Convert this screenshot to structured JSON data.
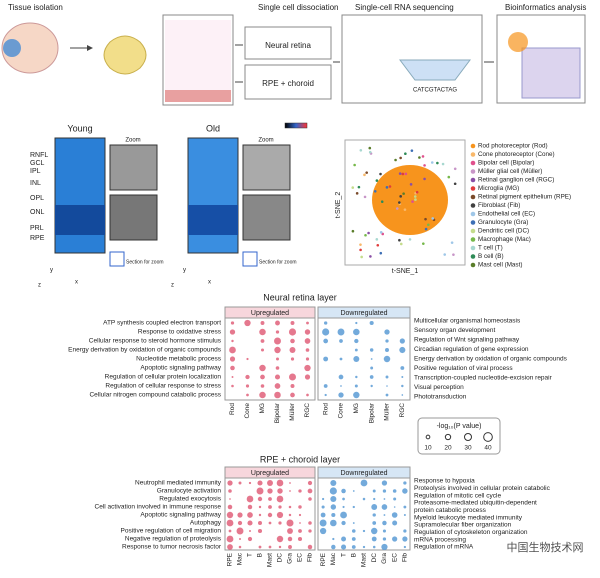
{
  "workflow": {
    "steps": [
      "Tissue isolation",
      "Single cell dissociation",
      "Single-cell RNA sequencing",
      "Bioinformatics analysis"
    ],
    "samples": [
      "Neural retina",
      "RPE + choroid"
    ],
    "sequence": "CATCGTACTAG"
  },
  "oct": {
    "groups": [
      "Young",
      "Old"
    ],
    "zoom": "Zoom",
    "layers": [
      "RNFL",
      "GCL",
      "IPL",
      "INL",
      "OPL",
      "ONL",
      "PRL",
      "RPE"
    ],
    "section": "Section for zoom",
    "axes": [
      "y",
      "x",
      "z"
    ]
  },
  "tsne": {
    "x_label": "t-SNE_1",
    "y_label": "t-SNE_2",
    "cell_types": [
      {
        "name": "Rod photoreceptor (Rod)",
        "color": "#f7941d"
      },
      {
        "name": "Cone photoreceptor (Cone)",
        "color": "#f9b86a"
      },
      {
        "name": "Bipolar cell (Bipolar)",
        "color": "#e0508c"
      },
      {
        "name": "Müller glial cell (Müller)",
        "color": "#c896c8"
      },
      {
        "name": "Retinal ganglion cell (RGC)",
        "color": "#8a4fa6"
      },
      {
        "name": "Microglia (MG)",
        "color": "#e03c3c"
      },
      {
        "name": "Retinal pigment epithelium (RPE)",
        "color": "#7a4a2a"
      },
      {
        "name": "Fibroblast (Fib)",
        "color": "#404040"
      },
      {
        "name": "Endothelial cell (EC)",
        "color": "#9fc7e8"
      },
      {
        "name": "Granulocyte (Gra)",
        "color": "#3d6fb5"
      },
      {
        "name": "Dendritic cell (DC)",
        "color": "#c4dc8c"
      },
      {
        "name": "Macrophage (Mac)",
        "color": "#76b84a"
      },
      {
        "name": "T cell (T)",
        "color": "#a8d8d0"
      },
      {
        "name": "B cell (B)",
        "color": "#2e8b57"
      },
      {
        "name": "Mast cell (Mast)",
        "color": "#5a7d2a"
      }
    ]
  },
  "dotplots": [
    {
      "title": "Neural retina layer",
      "up": "Upregulated",
      "down": "Downregulated",
      "up_terms": [
        "ATP synthesis coupled electron transport",
        "Response to oxidative stress",
        "Cellular response to steroid hormone stimulus",
        "Energy derivation by oxidation of organic compounds",
        "Nucleotide metabolic process",
        "Apoptotic signaling pathway",
        "Regulation of cellular protein localization",
        "Regulation of cellular response to stress",
        "Cellular nitrogen compound catabolic process"
      ],
      "down_terms": [
        "Multicellular organismal homeostasis",
        "Sensory organ development",
        "Regulation of Wnt signaling pathway",
        "Circadian regulation of gene expression",
        "Energy derivation by oxidation of organic compounds",
        "Positive regulation of viral process",
        "Transcription-coupled nucleotide-excision repair",
        "Visual perception",
        "Phototransduction"
      ],
      "up_cells": [
        "Rod",
        "Cone",
        "MG",
        "Bipolar",
        "Müller",
        "RGC"
      ],
      "down_cells": [
        "Rod",
        "Cone",
        "MG",
        "Bipolar",
        "Müller",
        "RGC"
      ]
    },
    {
      "title": "RPE + choroid layer",
      "up": "Upregulated",
      "down": "Downregulated",
      "up_terms": [
        "Neutrophil mediated immunity",
        "Granulocyte activation",
        "Regulated exocytosis",
        "Cell activation involved in immune response",
        "Apoptotic signaling pathway",
        "Autophagy",
        "Positive regulation of cell migration",
        "Negative regulation of proteolysis",
        "Response to tumor necrosis factor"
      ],
      "down_terms": [
        "Response to hypoxia",
        "Proteolysis involved in cellular protein catabolic",
        "Regulation of mitotic cell cycle",
        "Proteasome-mediated ubiquitin-dependent",
        "protein catabolic process",
        "Myeloid leukocyte mediated immunity",
        "Supramolecular fiber organization",
        "Regulation of cytoskeleton organization",
        "mRNA processing",
        "Regulation of mRNA"
      ],
      "up_cells": [
        "RPE",
        "Mac",
        "T",
        "B",
        "Mast",
        "DC",
        "Gra",
        "EC",
        "Fib"
      ],
      "down_cells": [
        "RPE",
        "Mac",
        "T",
        "B",
        "Mast",
        "DC",
        "Gra",
        "EC",
        "Fib"
      ]
    }
  ],
  "size_legend": {
    "title": "-log₁₀(P value)",
    "values": [
      10,
      20,
      30,
      40
    ]
  },
  "watermark": "中国生物技术网"
}
